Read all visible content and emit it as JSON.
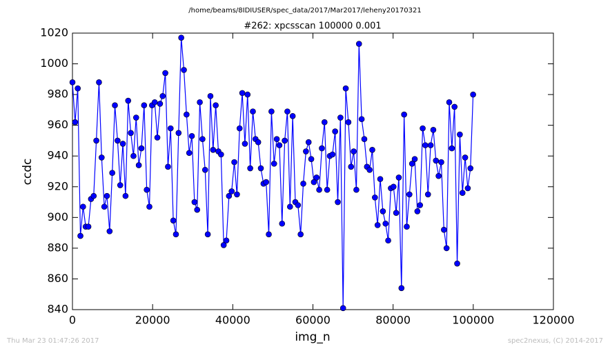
{
  "chart_data": {
    "type": "line",
    "header": "/home/beams/8IDIUSER/spec_data/2017/Mar2017/leheny20170321",
    "title": "#262: xpcsscan 100000 0.001",
    "xlabel": "img_n",
    "ylabel": "ccdc",
    "footer_left": "Thu Mar 23 01:47:26 2017",
    "footer_right": "spec2nexus, (C) 2014-2017",
    "xlim": [
      0,
      120000
    ],
    "xticks": [
      0,
      20000,
      40000,
      60000,
      80000,
      100000,
      120000
    ],
    "ylim": [
      840,
      1020
    ],
    "yticks": [
      840,
      860,
      880,
      900,
      920,
      940,
      960,
      980,
      1000,
      1020
    ],
    "grid": false,
    "color": "#0000ff",
    "marker_edge": "#000000",
    "x": [
      0,
      662,
      1324,
      1986,
      2648,
      3310,
      3972,
      4634,
      5296,
      5958,
      6620,
      7282,
      7944,
      8606,
      9268,
      9930,
      10592,
      11254,
      11916,
      12578,
      13240,
      13902,
      14564,
      15226,
      15888,
      16550,
      17212,
      17874,
      18536,
      19198,
      19860,
      20522,
      21184,
      21846,
      22508,
      23170,
      23832,
      24494,
      25156,
      25818,
      26480,
      27142,
      27804,
      28466,
      29128,
      29790,
      30452,
      31114,
      31776,
      32438,
      33100,
      33762,
      34424,
      35086,
      35748,
      36410,
      37072,
      37734,
      38396,
      39058,
      39720,
      40382,
      41044,
      41706,
      42368,
      43030,
      43692,
      44354,
      45016,
      45678,
      46340,
      47002,
      47664,
      48326,
      48988,
      49650,
      50312,
      50974,
      51636,
      52298,
      52960,
      53622,
      54284,
      54946,
      55608,
      56270,
      56932,
      57594,
      58256,
      58918,
      59580,
      60242,
      60904,
      61566,
      62228,
      62890,
      63552,
      64214,
      64876,
      65538,
      66200,
      66862,
      67524,
      68186,
      68848,
      69510,
      70172,
      70834,
      71496,
      72158,
      72820,
      73482,
      74144,
      74806,
      75468,
      76130,
      76792,
      77454,
      78116,
      78778,
      79440,
      80102,
      80764,
      81426,
      82088,
      82750,
      83412,
      84074,
      84736,
      85398,
      86060,
      86722,
      87384,
      88046,
      88708,
      89370,
      90032,
      90694,
      91356,
      92018,
      92680,
      93342,
      94004,
      94666,
      95328,
      95990,
      96652,
      97314,
      97976,
      98638,
      99300,
      99962
    ],
    "values": [
      988,
      962,
      984,
      888,
      907,
      894,
      894,
      912,
      914,
      950,
      988,
      939,
      907,
      914,
      891,
      929,
      973,
      950,
      921,
      948,
      914,
      976,
      955,
      940,
      965,
      934,
      945,
      973,
      918,
      907,
      973,
      975,
      952,
      974,
      979,
      994,
      933,
      958,
      898,
      889,
      955,
      1017,
      996,
      967,
      942,
      953,
      910,
      905,
      975,
      951,
      931,
      889,
      979,
      944,
      973,
      943,
      941,
      882,
      885,
      914,
      917,
      936,
      915,
      958,
      981,
      948,
      980,
      932,
      969,
      951,
      949,
      932,
      922,
      923,
      889,
      969,
      935,
      951,
      947,
      896,
      950,
      969,
      907,
      966,
      910,
      908,
      889,
      922,
      943,
      949,
      938,
      923,
      926,
      918,
      945,
      962,
      918,
      940,
      941,
      956,
      910,
      965,
      841,
      984,
      962,
      933,
      943,
      918,
      1013,
      964,
      951,
      933,
      931,
      944,
      913,
      895,
      925,
      904,
      896,
      885,
      919,
      920,
      903,
      926,
      854,
      967,
      894,
      915,
      935,
      938,
      904,
      908,
      958,
      947,
      915,
      947,
      957,
      937,
      927,
      936,
      892,
      880,
      975,
      945,
      972,
      870,
      954,
      916,
      939,
      919,
      932,
      980
    ]
  }
}
